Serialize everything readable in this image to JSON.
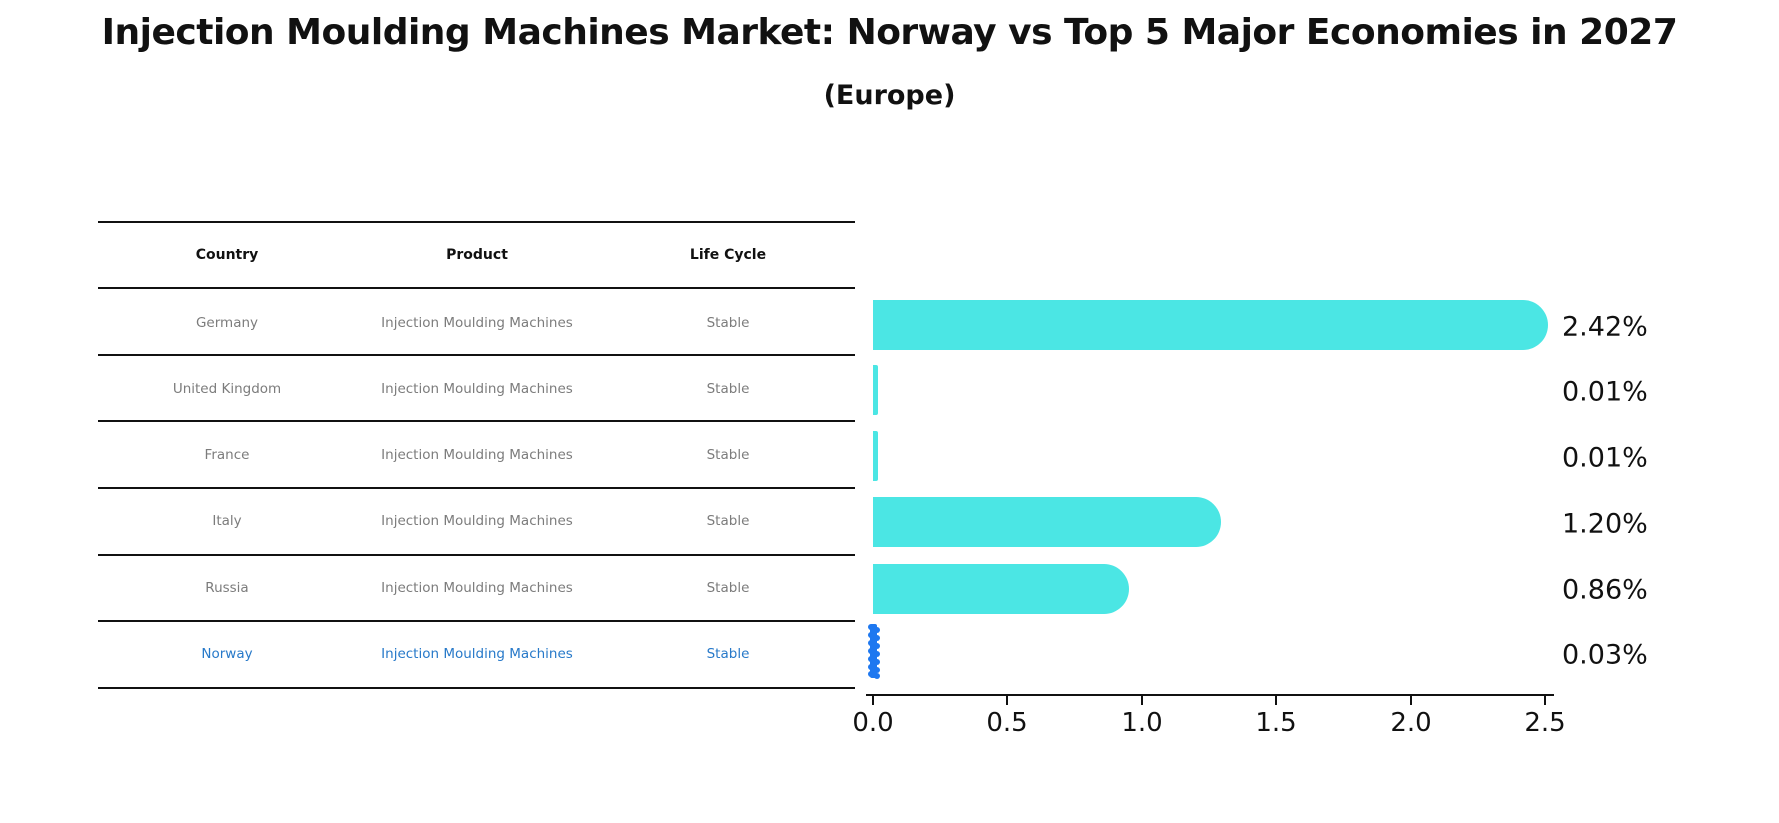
{
  "title": "Injection Moulding Machines Market: Norway vs Top 5 Major Economies in 2027",
  "subtitle": "(Europe)",
  "table": {
    "headers": [
      "Country",
      "Product",
      "Life Cycle"
    ],
    "rows": [
      {
        "country": "Germany",
        "product": "Injection Moulding Machines",
        "life_cycle": "Stable",
        "highlighted": false
      },
      {
        "country": "United Kingdom",
        "product": "Injection Moulding Machines",
        "life_cycle": "Stable",
        "highlighted": false
      },
      {
        "country": "France",
        "product": "Injection Moulding Machines",
        "life_cycle": "Stable",
        "highlighted": false
      },
      {
        "country": "Italy",
        "product": "Injection Moulding Machines",
        "life_cycle": "Stable",
        "highlighted": false
      },
      {
        "country": "Russia",
        "product": "Injection Moulding Machines",
        "life_cycle": "Stable",
        "highlighted": false
      },
      {
        "country": "Norway",
        "product": "Injection Moulding Machines",
        "life_cycle": "Stable",
        "highlighted": true
      }
    ]
  },
  "chart_data": {
    "type": "bar",
    "orientation": "horizontal",
    "title": "Injection Moulding Machines Market: Norway vs Top 5 Major Economies in 2027 (Europe)",
    "categories": [
      "Germany",
      "United Kingdom",
      "France",
      "Italy",
      "Russia",
      "Norway"
    ],
    "values": [
      2.42,
      0.01,
      0.01,
      1.2,
      0.86,
      0.03
    ],
    "labels": [
      "2.42%",
      "0.01%",
      "0.01%",
      "1.20%",
      "0.86%",
      "0.03%"
    ],
    "xticks": [
      "0.0",
      "0.5",
      "1.0",
      "1.5",
      "2.0",
      "2.5"
    ],
    "xlim": [
      0,
      2.5
    ],
    "grid": false,
    "value_label_position": "right-of-bar",
    "bar_color": "#4BE6E4",
    "highlight_color": "#1E78F0",
    "highlight_index": 5
  },
  "colors": {
    "row_text": "#7c7c7c",
    "highlight_text": "#2779c9",
    "axis": "#111111",
    "background": "#ffffff"
  }
}
